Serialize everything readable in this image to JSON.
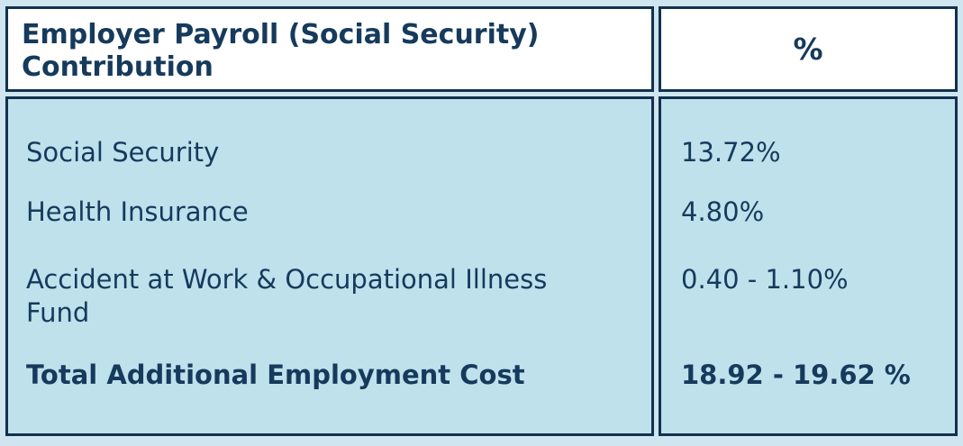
{
  "colors": {
    "page_bg": "#cfe6f0",
    "header_bg": "#ffffff",
    "cell_bg": "#bfe1ec",
    "border": "#13314e",
    "text": "#163a5c"
  },
  "table": {
    "header": {
      "label": "Employer Payroll (Social Security) Contribution",
      "value_label": "%"
    },
    "rows": [
      {
        "label": "Social Security",
        "value": "13.72%"
      },
      {
        "label": "Health Insurance",
        "value": "4.80%"
      },
      {
        "label": "Accident at Work & Occupational Illness Fund",
        "value": "0.40 - 1.10%"
      },
      {
        "label": "Total Additional Employment Cost",
        "value": "18.92 - 19.62 %"
      }
    ]
  },
  "chart_data": {
    "type": "table",
    "title": "Employer Payroll (Social Security) Contribution",
    "columns": [
      "Employer Payroll (Social Security) Contribution",
      "%"
    ],
    "rows": [
      [
        "Social Security",
        "13.72%"
      ],
      [
        "Health Insurance",
        "4.80%"
      ],
      [
        "Accident at Work & Occupational Illness Fund",
        "0.40 - 1.10%"
      ],
      [
        "Total Additional Employment Cost",
        "18.92 - 19.62 %"
      ]
    ],
    "notes": {
      "total_row_bold": true,
      "value_unit": "percent of payroll"
    }
  }
}
